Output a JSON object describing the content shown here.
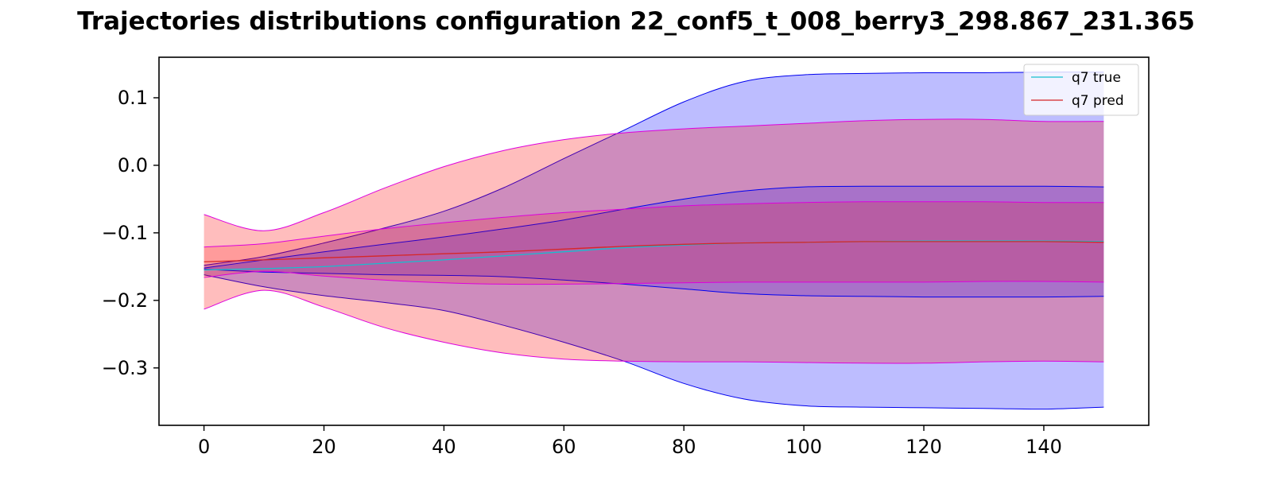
{
  "chart_data": {
    "type": "area",
    "title": "Trajectories distributions configuration  22_conf5_t_008_berry3_298.867_231.365",
    "xlabel": "",
    "ylabel": "",
    "xlim": [
      -7.5,
      157.5
    ],
    "ylim": [
      -0.385,
      0.16
    ],
    "xticks": [
      0,
      20,
      40,
      60,
      80,
      100,
      120,
      140
    ],
    "yticks": [
      0.1,
      0.0,
      -0.1,
      -0.2,
      -0.3
    ],
    "ytick_labels": [
      "0.1",
      "0.0",
      "−0.1",
      "−0.2",
      "−0.3"
    ],
    "grid": false,
    "legend_position": "top-right",
    "legend": [
      {
        "label": "q7 true",
        "color": "#17becf"
      },
      {
        "label": "q7 pred",
        "color": "#d62728"
      }
    ],
    "x": [
      0,
      10,
      20,
      30,
      40,
      50,
      60,
      70,
      80,
      90,
      100,
      110,
      120,
      130,
      140,
      150
    ],
    "bands": [
      {
        "name": "true outer",
        "fill": "#0000ff",
        "opacity": 0.26,
        "edge": "#0000ee",
        "upper": [
          -0.148,
          -0.135,
          -0.115,
          -0.093,
          -0.068,
          -0.033,
          0.01,
          0.052,
          0.094,
          0.124,
          0.134,
          0.136,
          0.137,
          0.137,
          0.138,
          0.138
        ],
        "lower": [
          -0.162,
          -0.18,
          -0.193,
          -0.203,
          -0.215,
          -0.237,
          -0.262,
          -0.29,
          -0.323,
          -0.346,
          -0.356,
          -0.358,
          -0.359,
          -0.36,
          -0.361,
          -0.358
        ]
      },
      {
        "name": "pred outer",
        "fill": "#ff0000",
        "opacity": 0.26,
        "edge": "#dd00dd",
        "upper": [
          -0.073,
          -0.097,
          -0.07,
          -0.034,
          -0.002,
          0.022,
          0.038,
          0.048,
          0.054,
          0.058,
          0.062,
          0.066,
          0.068,
          0.068,
          0.065,
          0.065
        ],
        "lower": [
          -0.213,
          -0.185,
          -0.21,
          -0.24,
          -0.262,
          -0.278,
          -0.287,
          -0.29,
          -0.291,
          -0.291,
          -0.292,
          -0.293,
          -0.293,
          -0.291,
          -0.29,
          -0.291
        ]
      },
      {
        "name": "true inner",
        "fill": "#0000ff",
        "opacity": 0.18,
        "edge": "#0000ee",
        "upper": [
          -0.152,
          -0.14,
          -0.128,
          -0.117,
          -0.106,
          -0.094,
          -0.081,
          -0.065,
          -0.05,
          -0.038,
          -0.032,
          -0.031,
          -0.031,
          -0.031,
          -0.031,
          -0.032
        ],
        "lower": [
          -0.154,
          -0.158,
          -0.16,
          -0.162,
          -0.163,
          -0.165,
          -0.17,
          -0.176,
          -0.183,
          -0.19,
          -0.193,
          -0.194,
          -0.195,
          -0.195,
          -0.195,
          -0.194
        ]
      },
      {
        "name": "pred inner",
        "fill": "#ff0000",
        "opacity": 0.18,
        "edge": "#dd00dd",
        "upper": [
          -0.121,
          -0.116,
          -0.105,
          -0.094,
          -0.085,
          -0.077,
          -0.07,
          -0.065,
          -0.06,
          -0.057,
          -0.055,
          -0.054,
          -0.054,
          -0.054,
          -0.055,
          -0.055
        ],
        "lower": [
          -0.166,
          -0.157,
          -0.164,
          -0.17,
          -0.174,
          -0.176,
          -0.176,
          -0.175,
          -0.174,
          -0.173,
          -0.173,
          -0.173,
          -0.173,
          -0.172,
          -0.172,
          -0.173
        ]
      }
    ],
    "series": [
      {
        "name": "q7 true",
        "color": "#17becf",
        "values": [
          -0.155,
          -0.153,
          -0.15,
          -0.145,
          -0.14,
          -0.134,
          -0.128,
          -0.122,
          -0.118,
          -0.115,
          -0.114,
          -0.113,
          -0.112,
          -0.112,
          -0.112,
          -0.113
        ]
      },
      {
        "name": "q7 pred",
        "color": "#d62728",
        "values": [
          -0.143,
          -0.14,
          -0.137,
          -0.134,
          -0.131,
          -0.128,
          -0.124,
          -0.12,
          -0.117,
          -0.115,
          -0.114,
          -0.113,
          -0.113,
          -0.113,
          -0.113,
          -0.114
        ]
      }
    ]
  }
}
